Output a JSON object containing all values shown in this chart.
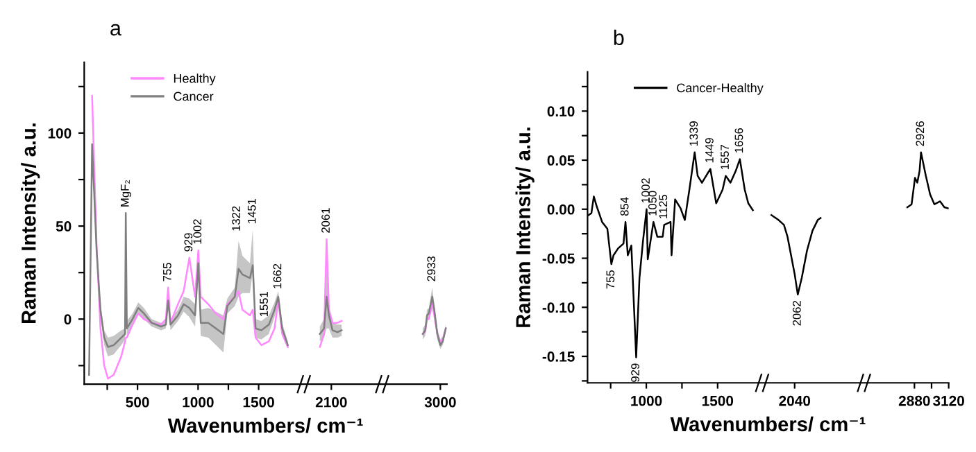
{
  "chart_data": [
    {
      "type": "line",
      "title": "a",
      "xlabel": "Wavenumbers/ cm⁻¹",
      "ylabel": "Raman Intensity/ a.u.",
      "legend": "top left",
      "series": [
        {
          "name": "Healthy",
          "color": "#ff88ff",
          "x": [
            125,
            162,
            194,
            225,
            256,
            303,
            366,
            397,
            403,
            412,
            459,
            506,
            553,
            616,
            694,
            734,
            753,
            772,
            834,
            881,
            928,
            975,
            1002,
            1022,
            1084,
            1147,
            1209,
            1241,
            1303,
            1334,
            1366,
            1428,
            1451,
            1475,
            1522,
            1584,
            1631,
            1662,
            1694,
            1741
          ],
          "values": [
            120,
            40,
            -5,
            -25,
            -32,
            -30,
            -20,
            -12,
            -10,
            -10,
            -3,
            3,
            0,
            -2,
            -3,
            0,
            17,
            -2,
            8,
            15,
            33,
            12,
            37,
            12,
            8,
            3,
            0,
            8,
            12,
            15,
            5,
            2,
            5,
            -10,
            -14,
            -12,
            -5,
            10,
            -8,
            -15
          ]
        },
        {
          "name": "Cancer",
          "color": "#7f7f7f",
          "x": [
            100,
            125,
            162,
            194,
            225,
            256,
            303,
            366,
            397,
            403,
            412,
            459,
            506,
            553,
            616,
            694,
            734,
            753,
            772,
            834,
            881,
            928,
            975,
            1002,
            1022,
            1084,
            1147,
            1209,
            1241,
            1303,
            1334,
            1366,
            1428,
            1451,
            1475,
            1522,
            1584,
            1631,
            1662,
            1694,
            1741
          ],
          "values": [
            -30,
            94,
            37,
            5,
            -10,
            -15,
            -14,
            -10,
            -8,
            57,
            -5,
            0,
            6,
            3,
            -2,
            -4,
            -3,
            10,
            -3,
            2,
            8,
            6,
            2,
            30,
            -2,
            -2,
            -5,
            -8,
            7,
            12,
            27,
            24,
            22,
            29,
            -5,
            -6,
            -3,
            5,
            12,
            -5,
            -14
          ],
          "lower": [
            null,
            91,
            34,
            2,
            -14,
            -20,
            -19,
            -14,
            -11,
            55,
            -9,
            -3,
            3,
            0,
            -4,
            -6,
            -5,
            7,
            -6,
            -1,
            4,
            1,
            -4,
            24,
            -9,
            -10,
            -14,
            -18,
            3,
            7,
            12,
            14,
            14,
            25,
            -10,
            -11,
            -8,
            1,
            9,
            -8,
            -16
          ],
          "upper": [
            null,
            97,
            40,
            8,
            -6,
            -10,
            -9,
            -6,
            -5,
            59,
            -1,
            3,
            9,
            6,
            0,
            -2,
            -1,
            13,
            0,
            5,
            12,
            11,
            8,
            36,
            5,
            6,
            4,
            2,
            11,
            17,
            42,
            34,
            30,
            48,
            0,
            -1,
            2,
            9,
            15,
            -2,
            -12
          ]
        },
        {
          "color": "#ff88ff",
          "x": [
            2005,
            2040,
            2061,
            2080,
            2110,
            2150,
            2185
          ],
          "values": [
            -15,
            -8,
            43,
            5,
            -2,
            -2,
            -1
          ]
        },
        {
          "color": "#7f7f7f",
          "x": [
            2005,
            2040,
            2061,
            2080,
            2110,
            2150,
            2185
          ],
          "values": [
            -8,
            -5,
            12,
            2,
            -6,
            -7,
            -6
          ],
          "lower": [
            -12,
            -10,
            -5,
            -5,
            -10,
            -10,
            -9
          ],
          "upper": [
            -4,
            0,
            28,
            8,
            -2,
            -3,
            -3
          ]
        },
        {
          "color": "#ff88ff",
          "x": [
            2855,
            2875,
            2890,
            2905,
            2933,
            2950,
            2975,
            3000,
            3020,
            3045
          ],
          "values": [
            -8,
            -7,
            0,
            0,
            8,
            2,
            -8,
            -12,
            -11,
            -5
          ]
        },
        {
          "color": "#7f7f7f",
          "x": [
            2855,
            2875,
            2890,
            2905,
            2933,
            2950,
            2975,
            3000,
            3020,
            3045
          ],
          "values": [
            -8,
            -6,
            2,
            3,
            12,
            5,
            -8,
            -14,
            -12,
            -5
          ],
          "lower": [
            -11,
            -9,
            -1,
            0,
            8,
            2,
            -11,
            -16,
            -14,
            -7
          ],
          "upper": [
            -5,
            -3,
            5,
            6,
            17,
            8,
            -5,
            -11,
            -9,
            -3
          ]
        }
      ],
      "xlim": [
        60,
        3055
      ],
      "xticks": [
        {
          "value": 250,
          "label": null
        },
        500,
        {
          "value": 750,
          "label": null
        },
        1000,
        {
          "value": 1250,
          "label": null
        },
        1500,
        2100,
        3000
      ],
      "ylim": [
        -35,
        138
      ],
      "yticks": [
        {
          "value": -25,
          "label": null
        },
        0,
        {
          "value": 25,
          "label": null
        },
        50,
        {
          "value": 75,
          "label": null
        },
        100,
        {
          "value": 125,
          "label": null
        }
      ],
      "annotations": [
        {
          "text": "MgF₂",
          "x": 403,
          "y": 57
        },
        {
          "text": "755",
          "x": 753,
          "y": 17
        },
        {
          "text": "929",
          "x": 928,
          "y": 33
        },
        {
          "text": "1002",
          "x": 1002,
          "y": 37
        },
        {
          "text": "1322",
          "x": 1322,
          "y": 44
        },
        {
          "text": "1451",
          "x": 1451,
          "y": 48
        },
        {
          "text": "1551",
          "x": 1551,
          "y": -2
        },
        {
          "text": "1662",
          "x": 1662,
          "y": 13
        },
        {
          "text": "2061",
          "x": 2061,
          "y": 43
        },
        {
          "text": "2933",
          "x": 2933,
          "y": 17
        }
      ]
    },
    {
      "type": "line",
      "title": "b",
      "xlabel": "Wavenumbers/ cm⁻¹",
      "ylabel": "Raman Intensity/ a.u.",
      "legend": "top left",
      "series": [
        {
          "name": "Cancer-Healthy",
          "color": "#000000",
          "x": [
            595,
            615,
            632,
            652,
            690,
            727,
            755,
            770,
            802,
            840,
            854,
            870,
            895,
            929,
            952,
            977,
            1002,
            1010,
            1050,
            1077,
            1115,
            1125,
            1170,
            1177,
            1202,
            1240,
            1270,
            1302,
            1339,
            1360,
            1390,
            1449,
            1490,
            1535,
            1557,
            1590,
            1627,
            1656,
            1690,
            1715,
            1747
          ],
          "values": [
            -0.006,
            -0.004,
            0.013,
            0.003,
            -0.013,
            -0.02,
            -0.056,
            -0.047,
            -0.04,
            -0.035,
            -0.013,
            -0.047,
            -0.037,
            -0.151,
            -0.07,
            -0.032,
            0.0,
            -0.051,
            -0.013,
            -0.028,
            -0.028,
            -0.016,
            -0.013,
            -0.047,
            0.01,
            0.001,
            -0.011,
            0.02,
            0.058,
            0.034,
            0.027,
            0.041,
            0.006,
            0.02,
            0.034,
            0.027,
            0.039,
            0.051,
            0.02,
            0.006,
            -0.001
          ]
        },
        {
          "color": "#000000",
          "x": [
            1877,
            1927,
            1965,
            1990,
            2015,
            2040,
            2062,
            2090,
            2127,
            2165,
            2202,
            2222
          ],
          "values": [
            -0.006,
            -0.011,
            -0.016,
            -0.028,
            -0.047,
            -0.066,
            -0.087,
            -0.07,
            -0.042,
            -0.022,
            -0.011,
            -0.009
          ]
        },
        {
          "color": "#000000",
          "x": [
            2830,
            2860,
            2884,
            2900,
            2916,
            2926,
            2960,
            2990,
            3020,
            3060,
            3090,
            3116
          ],
          "values": [
            0.002,
            0.005,
            0.032,
            0.027,
            0.039,
            0.058,
            0.034,
            0.015,
            0.005,
            0.008,
            0.002,
            0.001
          ]
        }
      ],
      "xlim": [
        588,
        3120
      ],
      "xticks": [
        {
          "value": 750,
          "label": null
        },
        1000,
        {
          "value": 1250,
          "label": null
        },
        1500,
        2040,
        2880,
        {
          "value": 3000,
          "label": null
        },
        3120
      ],
      "ylim": [
        -0.177,
        0.14
      ],
      "yticks": [
        {
          "value": -0.175,
          "label": null
        },
        {
          "value": -0.15,
          "label": "-0.15"
        },
        {
          "value": -0.125,
          "label": null
        },
        {
          "value": -0.1,
          "label": "-0.10"
        },
        {
          "value": -0.075,
          "label": null
        },
        {
          "value": -0.05,
          "label": "-0.05"
        },
        {
          "value": -0.025,
          "label": null
        },
        {
          "value": 0,
          "label": "0.00"
        },
        {
          "value": 0.025,
          "label": null
        },
        {
          "value": 0.05,
          "label": "0.05"
        },
        {
          "value": 0.075,
          "label": null
        },
        {
          "value": 0.1,
          "label": "0.10"
        },
        {
          "value": 0.125,
          "label": null
        }
      ],
      "annotations": [
        {
          "text": "755",
          "x": 755,
          "y": -0.056
        },
        {
          "text": "854",
          "x": 854,
          "y": -0.013
        },
        {
          "text": "929",
          "x": 929,
          "y": -0.151
        },
        {
          "text": "1002",
          "x": 1002,
          "y": 0.0
        },
        {
          "text": "1050",
          "x": 1050,
          "y": -0.013
        },
        {
          "text": "1125",
          "x": 1125,
          "y": -0.016
        },
        {
          "text": "1339",
          "x": 1339,
          "y": 0.058
        },
        {
          "text": "1449",
          "x": 1449,
          "y": 0.041
        },
        {
          "text": "1557",
          "x": 1557,
          "y": 0.034
        },
        {
          "text": "1656",
          "x": 1656,
          "y": 0.051
        },
        {
          "text": "2062",
          "x": 2062,
          "y": -0.087
        },
        {
          "text": "2926",
          "x": 2926,
          "y": 0.058
        }
      ]
    }
  ]
}
